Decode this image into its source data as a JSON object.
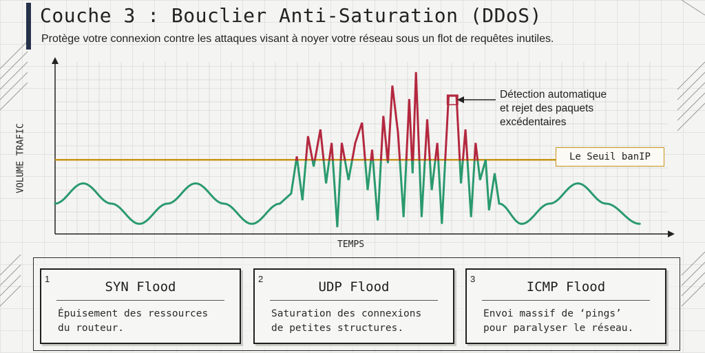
{
  "header": {
    "title": "Couche 3 : Bouclier Anti-Saturation (DDoS)",
    "subtitle": "Protège votre connexion contre les attaques visant à noyer votre réseau sous un flot de requêtes inutiles."
  },
  "chart_data": {
    "type": "line",
    "xlabel": "TEMPS",
    "ylabel": "VOLUME TRAFIC",
    "threshold": {
      "label": "Le Seuil banIP",
      "value": 0.44
    },
    "annotation": [
      "Détection automatique",
      "et rejet des paquets",
      "excédentaires"
    ],
    "ylim": [
      0,
      1
    ],
    "series": [
      {
        "values": [
          [
            0,
            0.18
          ],
          [
            0.5,
            0.3
          ],
          [
            1,
            0.18
          ],
          [
            1.5,
            0.06
          ],
          [
            2,
            0.18
          ],
          [
            2.5,
            0.3
          ],
          [
            3,
            0.18
          ],
          [
            3.5,
            0.06
          ],
          [
            4,
            0.18
          ],
          [
            4.2,
            0.24
          ],
          [
            4.3,
            0.46
          ],
          [
            4.4,
            0.2
          ],
          [
            4.5,
            0.58
          ],
          [
            4.6,
            0.4
          ],
          [
            4.72,
            0.62
          ],
          [
            4.82,
            0.3
          ],
          [
            4.92,
            0.54
          ],
          [
            5.02,
            0.04
          ],
          [
            5.1,
            0.54
          ],
          [
            5.22,
            0.32
          ],
          [
            5.34,
            0.54
          ],
          [
            5.46,
            0.66
          ],
          [
            5.56,
            0.26
          ],
          [
            5.64,
            0.5
          ],
          [
            5.74,
            0.08
          ],
          [
            5.84,
            0.7
          ],
          [
            5.92,
            0.42
          ],
          [
            6.0,
            0.88
          ],
          [
            6.1,
            0.6
          ],
          [
            6.2,
            0.1
          ],
          [
            6.3,
            0.8
          ],
          [
            6.36,
            0.36
          ],
          [
            6.42,
            0.96
          ],
          [
            6.52,
            0.1
          ],
          [
            6.62,
            0.68
          ],
          [
            6.7,
            0.26
          ],
          [
            6.8,
            0.54
          ],
          [
            6.88,
            0.06
          ],
          [
            7.0,
            0.82
          ],
          [
            7.14,
            0.82
          ],
          [
            7.22,
            0.3
          ],
          [
            7.3,
            0.62
          ],
          [
            7.4,
            0.1
          ],
          [
            7.48,
            0.54
          ],
          [
            7.56,
            0.32
          ],
          [
            7.66,
            0.44
          ],
          [
            7.72,
            0.14
          ],
          [
            7.82,
            0.36
          ],
          [
            7.9,
            0.18
          ],
          [
            8.3,
            0.06
          ],
          [
            8.8,
            0.18
          ],
          [
            9.3,
            0.3
          ],
          [
            9.8,
            0.18
          ],
          [
            10.4,
            0.06
          ]
        ]
      }
    ]
  },
  "cards": [
    {
      "num": "1",
      "name": "SYN Flood",
      "desc": [
        "Épuisement des ressources",
        "du routeur."
      ]
    },
    {
      "num": "2",
      "name": "UDP Flood",
      "desc": [
        "Saturation des connexions",
        "de petites structures."
      ]
    },
    {
      "num": "3",
      "name": "ICMP Flood",
      "desc": [
        "Envoi massif de ‘pings’",
        "pour paralyser le réseau."
      ]
    }
  ],
  "colors": {
    "normal": "#2a9a6e",
    "excess": "#b3283f",
    "threshold": "#c79416",
    "accent": "#26324a"
  }
}
